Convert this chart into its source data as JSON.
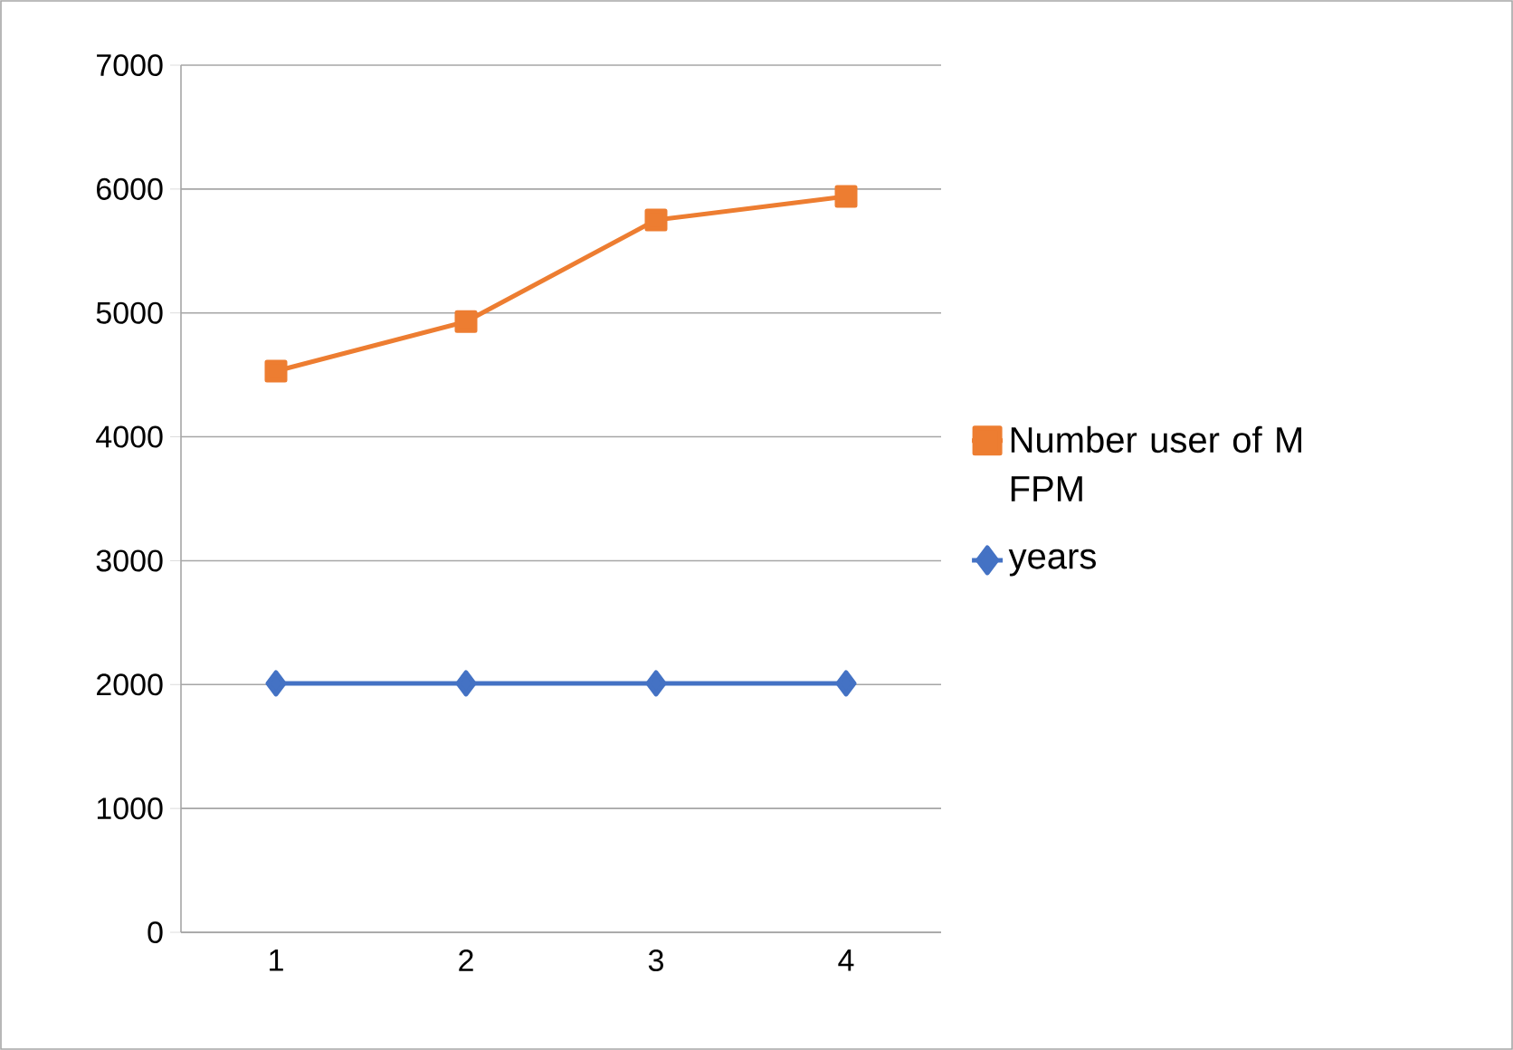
{
  "chart_data": {
    "type": "line",
    "categories": [
      "1",
      "2",
      "3",
      "4"
    ],
    "series": [
      {
        "name": "Number user of M FPM",
        "color": "#ed7d31",
        "marker": "square",
        "values": [
          4530,
          4930,
          5750,
          5940
        ]
      },
      {
        "name": "years",
        "color": "#4472c4",
        "marker": "diamond",
        "values": [
          2010,
          2010,
          2010,
          2010
        ]
      }
    ],
    "ylim": [
      0,
      7000
    ],
    "yticks": [
      0,
      1000,
      2000,
      3000,
      4000,
      5000,
      6000,
      7000
    ],
    "grid": "y",
    "legend": "right"
  }
}
